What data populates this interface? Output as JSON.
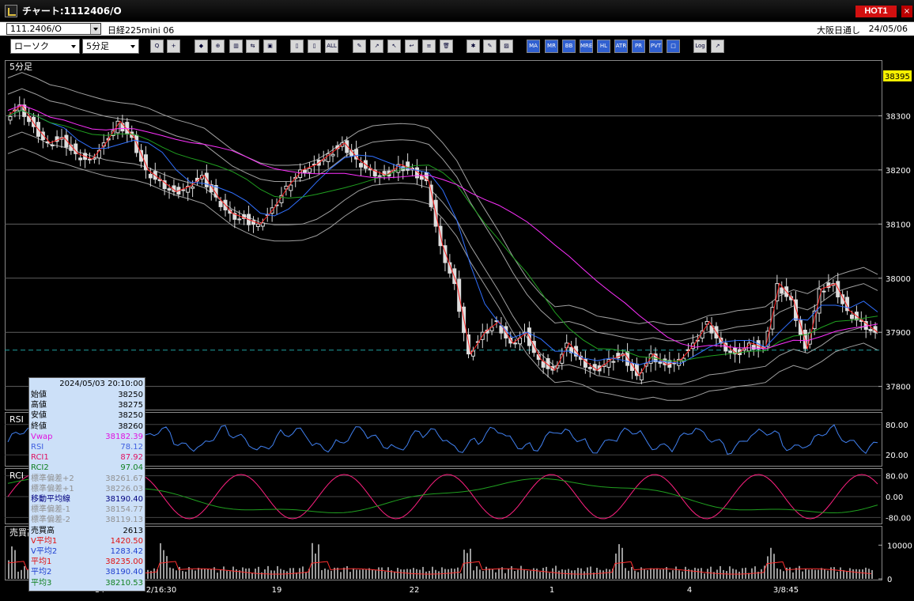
{
  "window": {
    "title": "チャート:1112406/O",
    "hot_label": "HOT1",
    "close": "×"
  },
  "infobar": {
    "symbol_code": "111.2406/O",
    "symbol_name": "日経225mini 06",
    "session": "大阪日通し",
    "date": "24/05/06"
  },
  "toolbar": {
    "chart_type": "ローソク",
    "interval": "5分足",
    "buttons": [
      {
        "name": "zoom-icon",
        "t": "Q"
      },
      {
        "name": "cursor-icon",
        "t": "+"
      },
      {
        "name": "scroll-icon",
        "t": "◆"
      },
      {
        "name": "magnify-icon",
        "t": "⊕"
      },
      {
        "name": "chart-icon",
        "t": "▥"
      },
      {
        "name": "compare-icon",
        "t": "⇆"
      },
      {
        "name": "lock-icon",
        "t": "▣"
      },
      {
        "name": "candle-icon",
        "t": "▯"
      },
      {
        "name": "candle2-icon",
        "t": "▯"
      },
      {
        "name": "all-icon",
        "t": "ALL"
      },
      {
        "name": "pen-icon",
        "t": "✎"
      },
      {
        "name": "trend-icon",
        "t": "↗"
      },
      {
        "name": "pointer-icon",
        "t": "↖"
      },
      {
        "name": "arrow-icon",
        "t": "↩"
      },
      {
        "name": "doc-icon",
        "t": "≡"
      },
      {
        "name": "trash-icon",
        "t": "🗑"
      },
      {
        "name": "settings-icon",
        "t": "✱"
      },
      {
        "name": "wrench-icon",
        "t": "✎"
      },
      {
        "name": "color-icon",
        "t": "▨"
      },
      {
        "name": "ma-icon",
        "t": "MA"
      },
      {
        "name": "mr-icon",
        "t": "MR"
      },
      {
        "name": "bb-icon",
        "t": "BB"
      },
      {
        "name": "mre-icon",
        "t": "MRE"
      },
      {
        "name": "hl-icon",
        "t": "HL"
      },
      {
        "name": "atr-icon",
        "t": "ATR"
      },
      {
        "name": "pr-icon",
        "t": "PR"
      },
      {
        "name": "pvt-icon",
        "t": "PVT"
      },
      {
        "name": "box-icon",
        "t": "□"
      },
      {
        "name": "log-icon",
        "t": "Log"
      },
      {
        "name": "export-icon",
        "t": "↗"
      }
    ]
  },
  "main_panel": {
    "label": "5分足",
    "current_price": "38395",
    "price_ticks": [
      "38300",
      "38200",
      "38100",
      "38000",
      "37900",
      "37800"
    ]
  },
  "rsi_panel": {
    "label": "RSI",
    "ticks": [
      "80.00",
      "20.00"
    ]
  },
  "rci_panel": {
    "label": "RCI",
    "ticks": [
      "80.00",
      "0.00",
      "-80.00"
    ]
  },
  "volume_panel": {
    "label": "売買高(10,12,24)",
    "ticks": [
      "10000",
      "0"
    ]
  },
  "x_axis": {
    "labels": [
      "14",
      "2/16:30",
      "19",
      "22",
      "1",
      "4",
      "3/8:45"
    ]
  },
  "info_panel": {
    "timestamp": "2024/05/03 20:10:00",
    "rows": [
      {
        "label": "始値",
        "value": "38250",
        "color": "#000000"
      },
      {
        "label": "高値",
        "value": "38275",
        "color": "#000000"
      },
      {
        "label": "安値",
        "value": "38250",
        "color": "#000000"
      },
      {
        "label": "終値",
        "value": "38260",
        "color": "#000000"
      },
      {
        "label": "Vwap",
        "value": "38182.39",
        "color": "#e010e0"
      },
      {
        "label": "RSI",
        "value": "78.12",
        "color": "#4060e0"
      },
      {
        "label": "RCI1",
        "value": "87.92",
        "color": "#e01060"
      },
      {
        "label": "RCI2",
        "value": "97.04",
        "color": "#108020"
      },
      {
        "label": "標準偏差+2",
        "value": "38261.67",
        "color": "#909090"
      },
      {
        "label": "標準偏差+1",
        "value": "38226.03",
        "color": "#909090"
      },
      {
        "label": "移動平均線",
        "value": "38190.40",
        "color": "#000080"
      },
      {
        "label": "標準偏差-1",
        "value": "38154.77",
        "color": "#909090"
      },
      {
        "label": "標準偏差-2",
        "value": "38119.13",
        "color": "#909090"
      },
      {
        "label": "売買高",
        "value": "2613",
        "color": "#000000"
      },
      {
        "label": "V平均1",
        "value": "1420.50",
        "color": "#e01010"
      },
      {
        "label": "V平均2",
        "value": "1283.42",
        "color": "#2040d0"
      },
      {
        "label": "平均1",
        "value": "38235.00",
        "color": "#e01010"
      },
      {
        "label": "平均2",
        "value": "38190.40",
        "color": "#2040d0"
      },
      {
        "label": "平均3",
        "value": "38210.53",
        "color": "#108020"
      }
    ]
  },
  "chart_data": {
    "type": "candlestick",
    "interval": "5分足",
    "ylim": [
      37760,
      38400
    ],
    "y_ticks": [
      38300,
      38200,
      38100,
      38000,
      37900,
      37800
    ],
    "x_labels": [
      "14",
      "2/16:30",
      "19",
      "22",
      "1",
      "4",
      "3/8:45"
    ],
    "close_path": [
      38300,
      38320,
      38280,
      38250,
      38260,
      38230,
      38220,
      38250,
      38290,
      38260,
      38200,
      38180,
      38160,
      38170,
      38190,
      38150,
      38120,
      38110,
      38100,
      38130,
      38170,
      38200,
      38210,
      38230,
      38250,
      38220,
      38200,
      38190,
      38210,
      38200,
      38180,
      38060,
      37990,
      37860,
      37900,
      37920,
      37880,
      37900,
      37850,
      37830,
      37880,
      37850,
      37830,
      37850,
      37860,
      37820,
      37860,
      37840,
      37850,
      37880,
      37920,
      37880,
      37860,
      37880,
      37870,
      37990,
      37960,
      37870,
      37980,
      37990,
      37940,
      37920,
      37900
    ],
    "dashed_level": 37867
  }
}
